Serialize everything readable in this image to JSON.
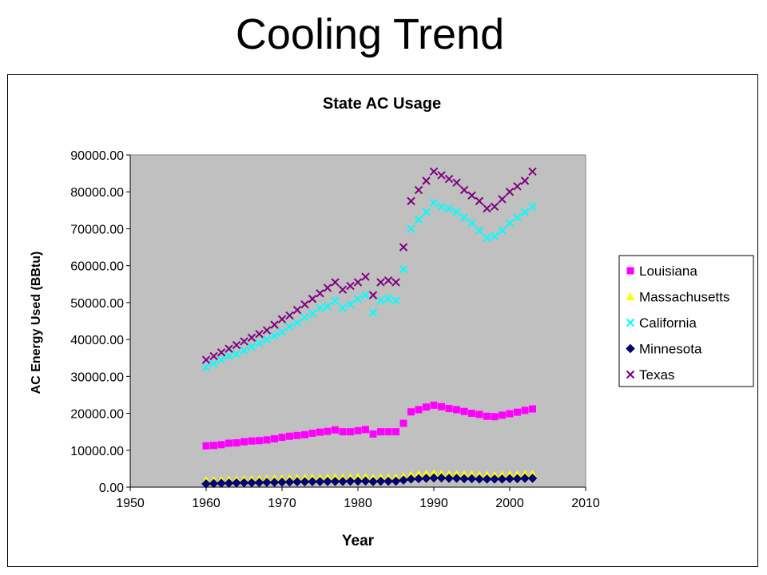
{
  "slide": {
    "title": "Cooling Trend"
  },
  "chart_data": {
    "type": "scatter",
    "title": "State AC Usage",
    "xlabel": "Year",
    "ylabel": "AC Energy Used (BBtu)",
    "xlim": [
      1950,
      2010
    ],
    "ylim": [
      0,
      90000
    ],
    "xticks": [
      1950,
      1960,
      1970,
      1980,
      1990,
      2000,
      2010
    ],
    "yticks": [
      0,
      10000,
      20000,
      30000,
      40000,
      50000,
      60000,
      70000,
      80000,
      90000
    ],
    "ytick_labels": [
      "0.00",
      "10000.00",
      "20000.00",
      "30000.00",
      "40000.00",
      "50000.00",
      "60000.00",
      "70000.00",
      "80000.00",
      "90000.00"
    ],
    "plot_background": "#c0c0c0",
    "grid": false,
    "legend_position": "right",
    "x": [
      1960,
      1961,
      1962,
      1963,
      1964,
      1965,
      1966,
      1967,
      1968,
      1969,
      1970,
      1971,
      1972,
      1973,
      1974,
      1975,
      1976,
      1977,
      1978,
      1979,
      1980,
      1981,
      1982,
      1983,
      1984,
      1985,
      1986,
      1987,
      1988,
      1989,
      1990,
      1991,
      1992,
      1993,
      1994,
      1995,
      1996,
      1997,
      1998,
      1999,
      2000,
      2001,
      2002,
      2003
    ],
    "series": [
      {
        "name": "Louisiana",
        "marker": "square",
        "color": "#ff00ff",
        "values": [
          11200,
          11300,
          11500,
          11900,
          12000,
          12300,
          12500,
          12600,
          12800,
          13100,
          13500,
          13800,
          14000,
          14200,
          14600,
          14900,
          15100,
          15500,
          15000,
          15000,
          15300,
          15600,
          14400,
          15000,
          15000,
          15000,
          17300,
          20400,
          21000,
          21700,
          22200,
          21800,
          21300,
          21000,
          20500,
          20000,
          19700,
          19200,
          19100,
          19500,
          19900,
          20300,
          20800,
          21200
        ]
      },
      {
        "name": "Massachusetts",
        "marker": "triangle",
        "color": "#ffff00",
        "values": [
          1800,
          1900,
          1900,
          2000,
          2000,
          2100,
          2100,
          2200,
          2200,
          2300,
          2300,
          2400,
          2400,
          2500,
          2500,
          2500,
          2600,
          2600,
          2600,
          2600,
          2700,
          2700,
          2500,
          2600,
          2600,
          2600,
          2900,
          3300,
          3500,
          3600,
          3700,
          3600,
          3500,
          3500,
          3400,
          3400,
          3300,
          3300,
          3200,
          3300,
          3400,
          3400,
          3500,
          3500
        ]
      },
      {
        "name": "California",
        "marker": "x",
        "color": "#00ffff",
        "values": [
          32500,
          33500,
          34500,
          35500,
          36000,
          37000,
          38000,
          39000,
          40000,
          41000,
          42000,
          43500,
          44500,
          46000,
          47000,
          48500,
          49000,
          50500,
          48500,
          49500,
          51000,
          52000,
          47300,
          50500,
          51000,
          50500,
          59000,
          70000,
          72500,
          74500,
          77000,
          76000,
          75500,
          74500,
          73000,
          71500,
          69500,
          67500,
          68000,
          69500,
          71500,
          73000,
          74500,
          76000
        ]
      },
      {
        "name": "Minnesota",
        "marker": "diamond",
        "color": "#000080",
        "values": [
          900,
          1000,
          1050,
          1100,
          1150,
          1200,
          1200,
          1250,
          1300,
          1300,
          1350,
          1400,
          1450,
          1450,
          1500,
          1500,
          1550,
          1550,
          1550,
          1600,
          1600,
          1650,
          1500,
          1600,
          1600,
          1600,
          1900,
          2200,
          2300,
          2400,
          2500,
          2500,
          2400,
          2400,
          2300,
          2300,
          2200,
          2200,
          2200,
          2200,
          2300,
          2300,
          2400,
          2400
        ]
      },
      {
        "name": "Texas",
        "marker": "x",
        "color": "#800080",
        "values": [
          34500,
          35500,
          36500,
          37500,
          38500,
          39500,
          40500,
          41500,
          42500,
          44000,
          45500,
          46500,
          48000,
          49500,
          51000,
          52500,
          54000,
          55500,
          53500,
          54500,
          55500,
          57000,
          52000,
          55500,
          56000,
          55500,
          65000,
          77500,
          80500,
          83000,
          85500,
          84500,
          83500,
          82500,
          80500,
          79000,
          77500,
          75500,
          76000,
          78000,
          80000,
          81500,
          83000,
          85500
        ]
      }
    ]
  }
}
